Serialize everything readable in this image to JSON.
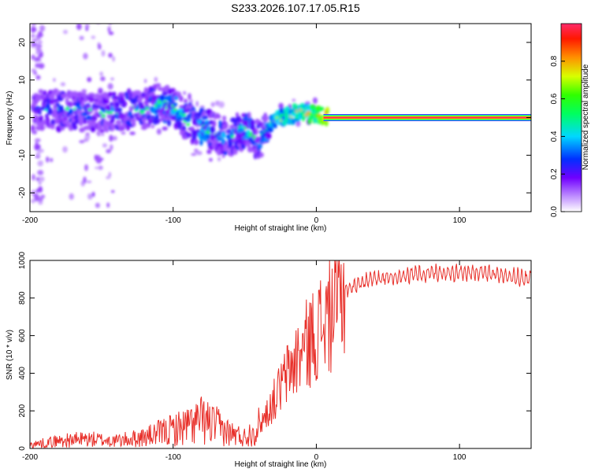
{
  "title": "S233.2026.107.17.05.R15",
  "chart_data": [
    {
      "type": "heatmap",
      "name": "spectrogram",
      "xlabel": "Height of straight line (km)",
      "ylabel": "Frequency (Hz)",
      "xlim": [
        -200,
        150
      ],
      "ylim": [
        -25,
        25
      ],
      "x_ticks": [
        -200,
        -100,
        0,
        100
      ],
      "y_ticks": [
        -20,
        -10,
        0,
        10,
        20
      ],
      "colorbar": {
        "label": "Normalized spectral amplitude",
        "range": [
          0,
          1
        ],
        "ticks": [
          "0.0",
          "0.2",
          "0.4",
          "0.6",
          "0.8"
        ],
        "tick_values": [
          0.0,
          0.2,
          0.4,
          0.6,
          0.8
        ]
      },
      "ridge": {
        "x": [
          -195,
          -180,
          -165,
          -150,
          -135,
          -120,
          -110,
          -100,
          -90,
          -80,
          -70,
          -60,
          -50,
          -40,
          -35,
          -30,
          -25,
          -20,
          -15,
          -10,
          -5,
          0,
          5,
          10,
          150
        ],
        "freq": [
          2,
          2,
          1.5,
          1,
          2,
          2,
          4,
          3,
          -1,
          -3,
          -4,
          -5,
          -3,
          -6,
          -4,
          -1,
          0,
          0.5,
          1,
          2,
          1,
          0.8,
          0.5,
          0,
          0
        ],
        "amplitude": [
          0.3,
          0.35,
          0.35,
          0.35,
          0.4,
          0.35,
          0.45,
          0.45,
          0.4,
          0.45,
          0.4,
          0.4,
          0.45,
          0.4,
          0.4,
          0.5,
          0.55,
          0.55,
          0.6,
          0.65,
          0.65,
          0.7,
          0.8,
          1.0,
          1.0
        ]
      },
      "carrier": {
        "x_start": 5,
        "x_end": 150,
        "freq": 0,
        "amplitude": 1.0
      }
    },
    {
      "type": "line",
      "name": "snr",
      "xlabel": "Height of straight line (km)",
      "ylabel": "SNR (10 * v/v)",
      "xlim": [
        -200,
        150
      ],
      "ylim": [
        0,
        1000
      ],
      "x_ticks": [
        -200,
        -100,
        0,
        100
      ],
      "y_ticks": [
        0,
        200,
        400,
        600,
        800,
        1000
      ],
      "color": "#e8302a",
      "envelope": {
        "x": [
          -200,
          -180,
          -160,
          -140,
          -120,
          -100,
          -90,
          -80,
          -70,
          -60,
          -50,
          -40,
          -30,
          -20,
          -10,
          0,
          10,
          20,
          30,
          40,
          60,
          80,
          100,
          120,
          150
        ],
        "y": [
          20,
          40,
          50,
          40,
          60,
          100,
          120,
          150,
          120,
          80,
          60,
          120,
          250,
          400,
          520,
          620,
          720,
          840,
          880,
          900,
          920,
          930,
          935,
          930,
          900
        ]
      }
    }
  ]
}
